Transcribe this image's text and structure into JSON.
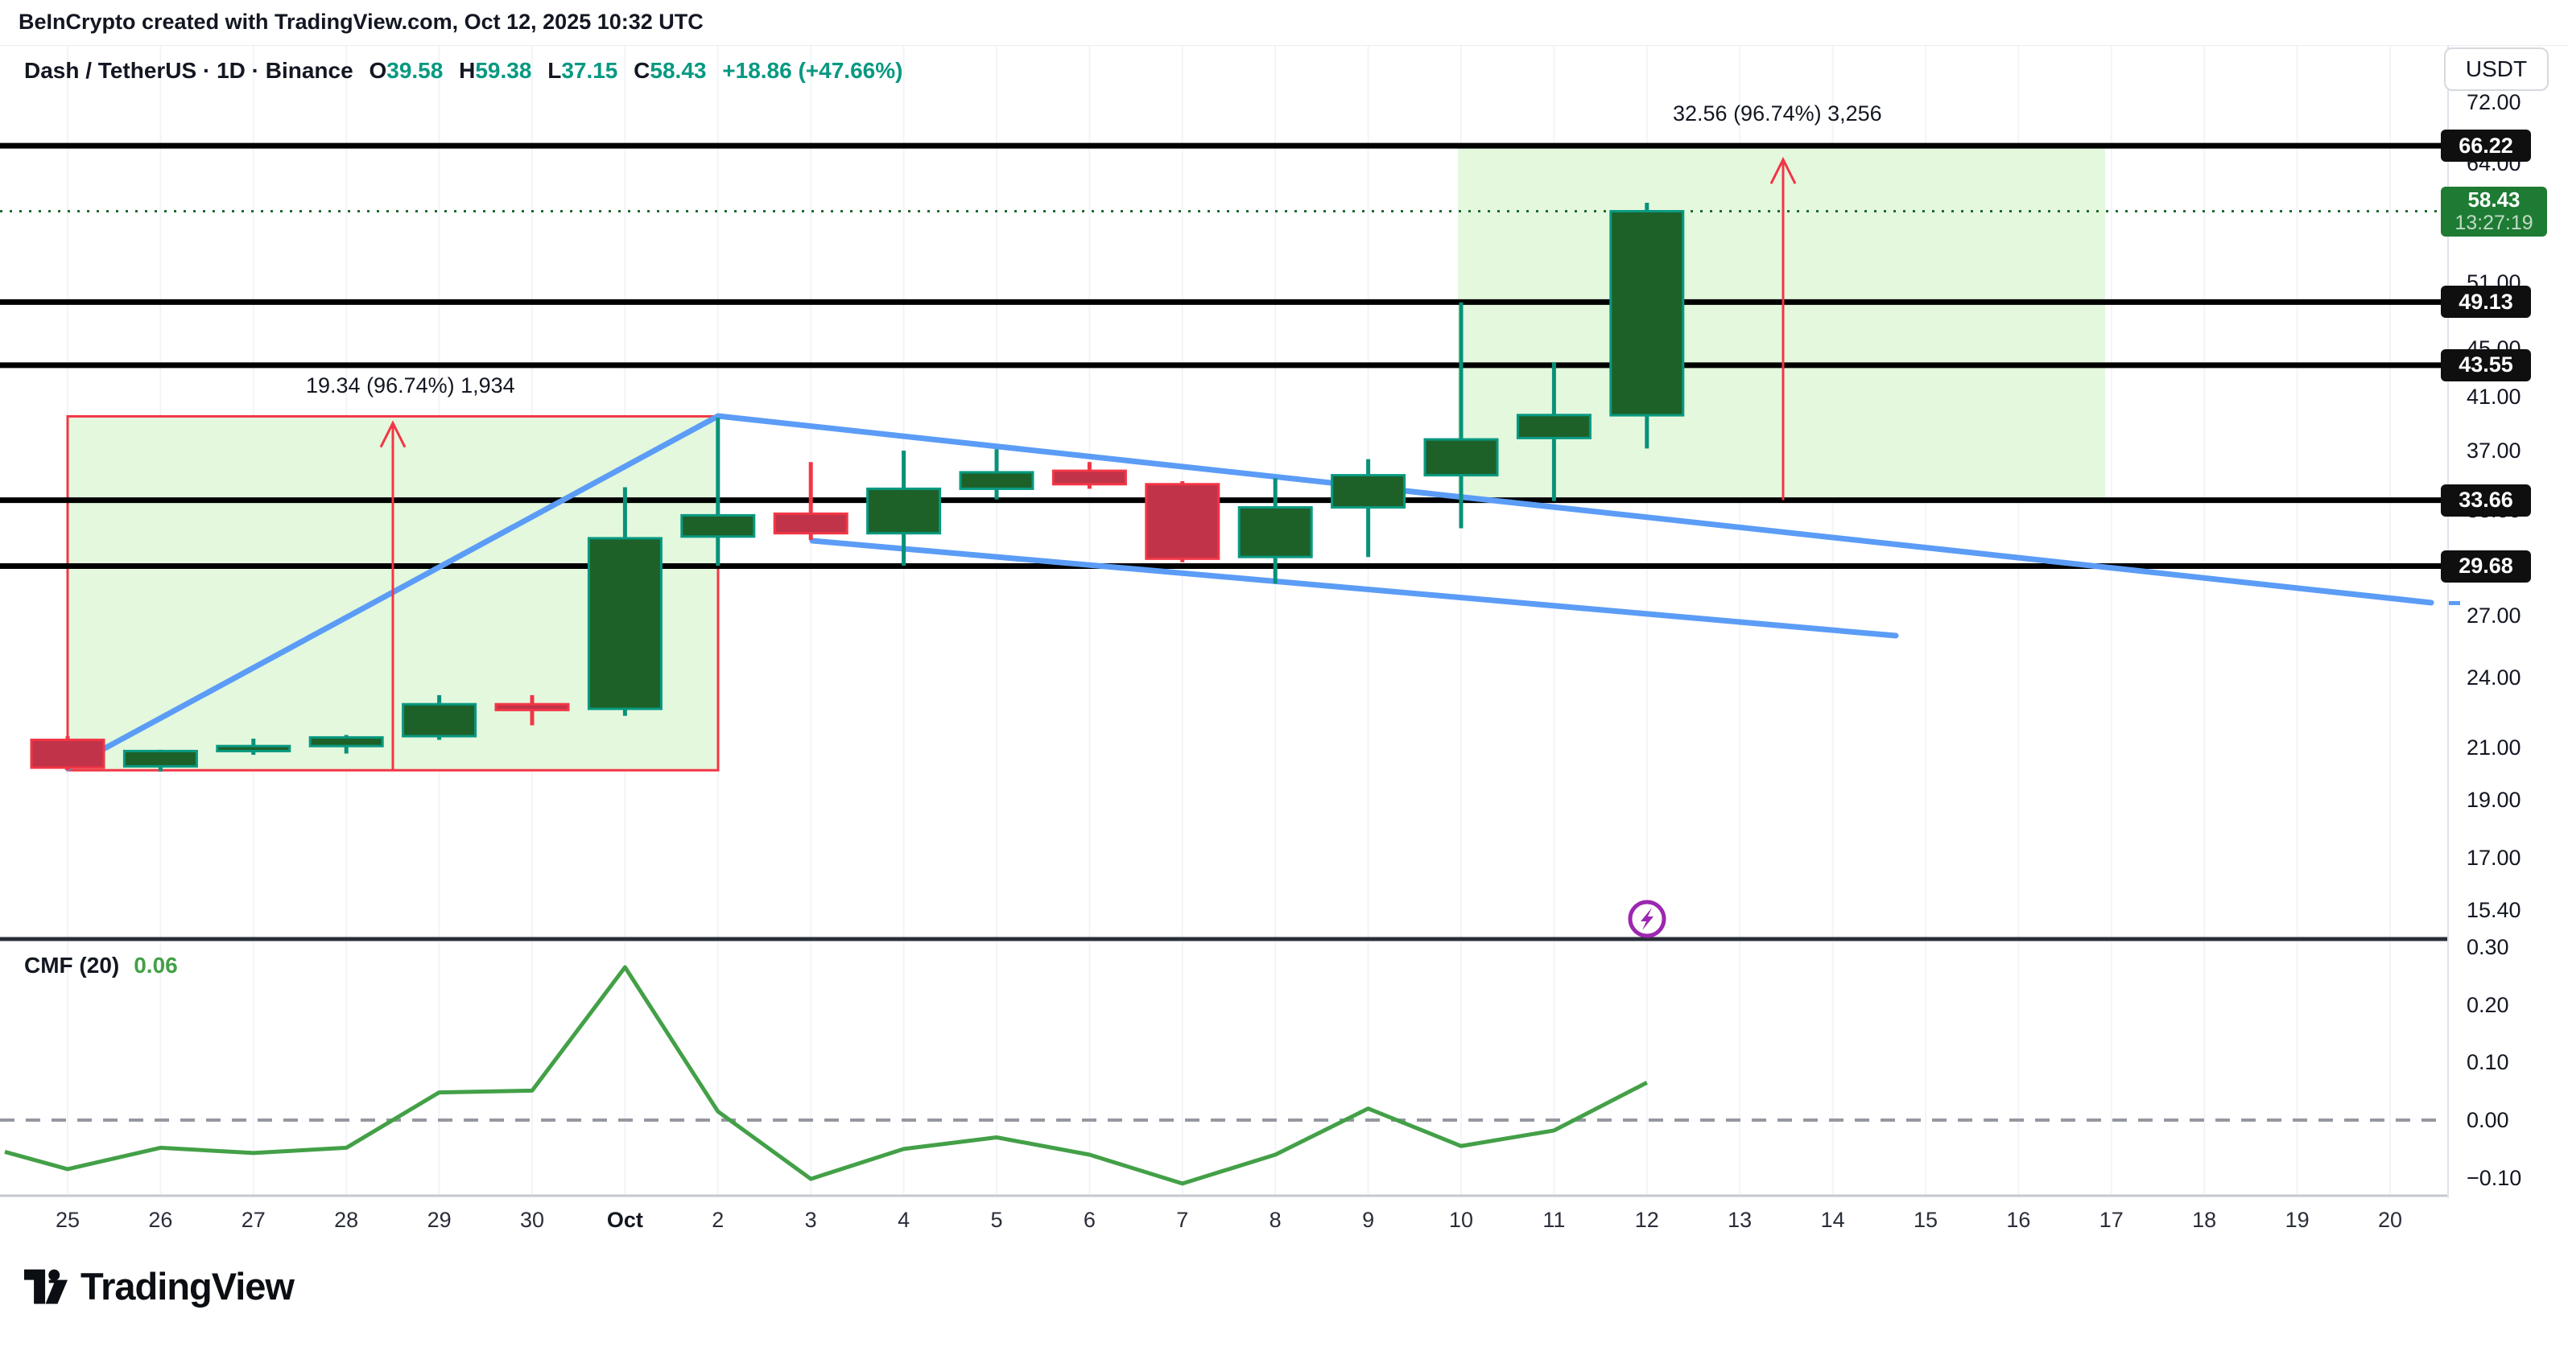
{
  "attribution": "BeInCrypto created with TradingView.com, Oct 12, 2025 10:32 UTC",
  "symbol_header": {
    "title": "Dash / TetherUS · 1D · Binance",
    "o_label": "O",
    "o_value": "39.58",
    "h_label": "H",
    "h_value": "59.38",
    "l_label": "L",
    "l_value": "37.15",
    "c_label": "C",
    "c_value": "58.43",
    "change": "+18.86 (+47.66%)"
  },
  "price_axis": {
    "currency_button": "USDT",
    "ticks": [
      {
        "label": "72.00",
        "price": 72
      },
      {
        "label": "64.00",
        "price": 64
      },
      {
        "label": "51.00",
        "price": 51
      },
      {
        "label": "45.00",
        "price": 45
      },
      {
        "label": "41.00",
        "price": 41
      },
      {
        "label": "37.00",
        "price": 37
      },
      {
        "label": "33.00",
        "price": 33
      },
      {
        "label": "27.00",
        "price": 27
      },
      {
        "label": "24.00",
        "price": 24
      },
      {
        "label": "21.00",
        "price": 21
      },
      {
        "label": "19.00",
        "price": 19
      },
      {
        "label": "17.00",
        "price": 17
      },
      {
        "label": "15.40",
        "price": 15.4
      }
    ],
    "level_badges": [
      {
        "label": "66.22",
        "price": 66.22
      },
      {
        "label": "49.13",
        "price": 49.13
      },
      {
        "label": "43.55",
        "price": 43.55
      },
      {
        "label": "33.66",
        "price": 33.66
      },
      {
        "label": "29.68",
        "price": 29.68
      }
    ],
    "current_badge": {
      "price_label": "58.43",
      "countdown": "13:27:19"
    }
  },
  "cmf_panel": {
    "label": "CMF (20)",
    "value": "0.06",
    "ticks": [
      {
        "label": "0.30",
        "v": 0.3
      },
      {
        "label": "0.20",
        "v": 0.2
      },
      {
        "label": "0.10",
        "v": 0.1
      },
      {
        "label": "0.00",
        "v": 0.0
      },
      {
        "label": "−0.10",
        "v": -0.1
      }
    ]
  },
  "footer": {
    "brand": "TradingView"
  },
  "colors": {
    "text": "#131722",
    "header_value_green": "#089981",
    "up_body": "#1D6129",
    "up_border": "#089981",
    "up_wick": "#0A9179",
    "down_body": "#C13349",
    "down_border": "#F23645",
    "down_wick": "#F23645",
    "level_line": "#000000",
    "trend_blue": "#5B9CF6",
    "box_fill": "#E4F8DE",
    "box_border": "#F23645",
    "arrow_red": "#F23645",
    "current_dotted": "#1D6B2F",
    "current_badge_bg": "#1E7B33",
    "badge_bg": "#0F0F0F",
    "cmf_line": "#43A047",
    "zero_dashed": "#9598A1",
    "grid": "#F2F4F8",
    "separator_dark": "#2A2E39",
    "separator_light": "#C4C7CE",
    "marker_purple": "#9C27B0"
  },
  "chart_data": {
    "type": "candlestick",
    "title": "Dash / TetherUS · 1D · Binance",
    "y_scale": "log",
    "price_axis_range": [
      14.5,
      74.0
    ],
    "x_labels": [
      "25",
      "26",
      "27",
      "28",
      "29",
      "30",
      "Oct",
      "2",
      "3",
      "4",
      "5",
      "6",
      "7",
      "8",
      "9",
      "10",
      "11",
      "12",
      "13",
      "14",
      "15",
      "16",
      "17",
      "18",
      "19",
      "20"
    ],
    "candles": [
      {
        "date": "Sep 25",
        "o": 21.3,
        "h": 21.45,
        "l": 20.1,
        "c": 20.2
      },
      {
        "date": "Sep 26",
        "o": 20.25,
        "h": 20.9,
        "l": 20.05,
        "c": 20.85
      },
      {
        "date": "Sep 27",
        "o": 20.85,
        "h": 21.35,
        "l": 20.7,
        "c": 21.05
      },
      {
        "date": "Sep 28",
        "o": 21.05,
        "h": 21.5,
        "l": 20.75,
        "c": 21.4
      },
      {
        "date": "Sep 29",
        "o": 21.45,
        "h": 23.2,
        "l": 21.3,
        "c": 22.8
      },
      {
        "date": "Sep 30",
        "o": 22.8,
        "h": 23.2,
        "l": 21.9,
        "c": 22.55
      },
      {
        "date": "Oct 1",
        "o": 22.6,
        "h": 34.5,
        "l": 22.3,
        "c": 31.3
      },
      {
        "date": "Oct 2",
        "o": 31.4,
        "h": 39.4,
        "l": 29.7,
        "c": 32.7
      },
      {
        "date": "Oct 3",
        "o": 32.8,
        "h": 36.2,
        "l": 31.2,
        "c": 31.6
      },
      {
        "date": "Oct 4",
        "o": 31.6,
        "h": 37.0,
        "l": 29.7,
        "c": 34.4
      },
      {
        "date": "Oct 5",
        "o": 34.4,
        "h": 37.1,
        "l": 33.7,
        "c": 35.5
      },
      {
        "date": "Oct 6",
        "o": 35.6,
        "h": 36.2,
        "l": 34.4,
        "c": 34.7
      },
      {
        "date": "Oct 7",
        "o": 34.7,
        "h": 34.9,
        "l": 29.9,
        "c": 30.1
      },
      {
        "date": "Oct 8",
        "o": 30.2,
        "h": 35.1,
        "l": 28.7,
        "c": 33.2
      },
      {
        "date": "Oct 9",
        "o": 33.2,
        "h": 36.4,
        "l": 30.2,
        "c": 35.3
      },
      {
        "date": "Oct 10",
        "o": 35.3,
        "h": 49.1,
        "l": 31.9,
        "c": 37.8
      },
      {
        "date": "Oct 11",
        "o": 37.9,
        "h": 43.8,
        "l": 33.6,
        "c": 39.6
      },
      {
        "date": "Oct 12",
        "o": 39.58,
        "h": 59.38,
        "l": 37.15,
        "c": 58.43
      }
    ],
    "horizontal_levels": [
      66.22,
      49.13,
      43.55,
      33.66,
      29.68
    ],
    "current_price": 58.43,
    "projection_boxes": [
      {
        "from_label": "Sep 25",
        "to_label": "Oct 2",
        "x1": 84,
        "x2": 892,
        "price_top": 39.5,
        "price_bottom": 20.1,
        "bordered": true
      },
      {
        "from_label": "Oct 10",
        "to_label": "Oct 17",
        "x1": 1811,
        "x2": 2615,
        "price_top": 66.22,
        "price_bottom": 33.66,
        "bordered": false
      }
    ],
    "measure_annotations": [
      {
        "text": "19.34 (96.74%) 1,934",
        "x": 380,
        "y_page": 481
      },
      {
        "text": "32.56 (96.74%) 3,256",
        "x": 2078,
        "y_page": 143
      }
    ],
    "arrows": [
      {
        "x": 488,
        "from_price": 20.1,
        "to_price": 39.0
      },
      {
        "x": 2215,
        "from_price": 33.66,
        "to_price": 64.5
      }
    ],
    "trendlines": [
      {
        "name": "ascending-support",
        "x1": 84,
        "y1": 898,
        "x2": 892,
        "y2": 460
      },
      {
        "name": "wedge-upper",
        "x1": 892,
        "y1": 460,
        "x2": 3020,
        "y2": 692
      },
      {
        "name": "wedge-lower",
        "x1": 1009,
        "y1": 615,
        "x2": 2355,
        "y2": 733
      }
    ],
    "cmf": {
      "label": "CMF (20)",
      "period": 20,
      "current": 0.06,
      "edge_start_value": -0.055,
      "series": [
        -0.085,
        -0.048,
        -0.057,
        -0.048,
        0.048,
        0.051,
        0.265,
        0.015,
        -0.102,
        -0.05,
        -0.03,
        -0.06,
        -0.11,
        -0.06,
        0.02,
        -0.045,
        -0.018,
        0.065
      ],
      "ylim": [
        -0.17,
        0.33
      ]
    },
    "marker": {
      "type": "lightning-bolt",
      "x_label": "12",
      "x": 2046,
      "y": 1085
    }
  }
}
